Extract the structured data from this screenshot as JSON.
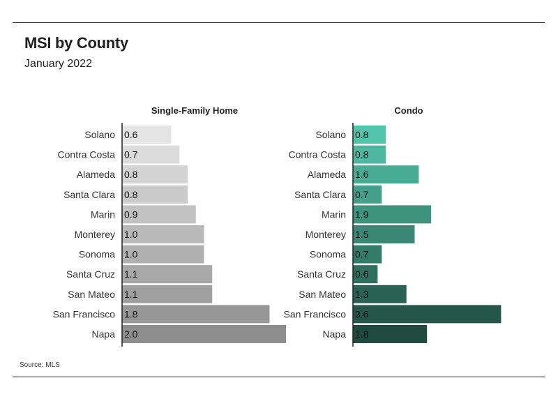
{
  "title": "MSI by County",
  "subtitle": "January 2022",
  "source": "Source: MLS",
  "chart_data": [
    {
      "type": "bar",
      "orientation": "horizontal",
      "title": "Single-Family Home",
      "categories": [
        "Solano",
        "Contra Costa",
        "Alameda",
        "Santa Clara",
        "Marin",
        "Monterey",
        "Sonoma",
        "Santa Cruz",
        "San Mateo",
        "San Francisco",
        "Napa"
      ],
      "values": [
        0.6,
        0.7,
        0.8,
        0.8,
        0.9,
        1.0,
        1.0,
        1.1,
        1.1,
        1.8,
        2.0
      ],
      "value_labels": [
        "0.6",
        "0.7",
        "0.8",
        "0.8",
        "0.9",
        "1.0",
        "1.0",
        "1.1",
        "1.1",
        "1.8",
        "2.0"
      ],
      "color_range": [
        "#e4e4e4",
        "#8e8e8e"
      ]
    },
    {
      "type": "bar",
      "orientation": "horizontal",
      "title": "Condo",
      "categories": [
        "Solano",
        "Contra Costa",
        "Alameda",
        "Santa Clara",
        "Marin",
        "Monterey",
        "Sonoma",
        "Santa Cruz",
        "San Mateo",
        "San Francisco",
        "Napa"
      ],
      "values": [
        0.8,
        0.8,
        1.6,
        0.7,
        1.9,
        1.5,
        0.7,
        0.6,
        1.3,
        3.6,
        1.8
      ],
      "value_labels": [
        "0.8",
        "0.8",
        "1.6",
        "0.7",
        "1.9",
        "1.5",
        "0.7",
        "0.6",
        "1.3",
        "3.6",
        "1.8"
      ],
      "color_range": [
        "#52c4aa",
        "#1f4a3e"
      ]
    }
  ]
}
